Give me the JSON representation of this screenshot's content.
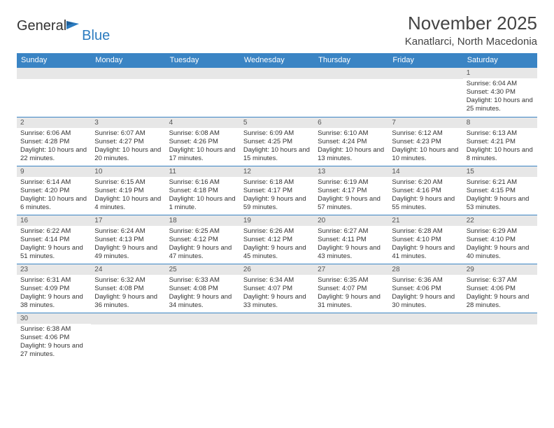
{
  "logo": {
    "word1": "General",
    "word2": "Blue",
    "flag_color": "#2b7bbf"
  },
  "title": "November 2025",
  "location": "Kanatlarci, North Macedonia",
  "header_bg": "#3a84c4",
  "daynum_bg": "#e7e7e7",
  "row_border": "#3a84c4",
  "weekdays": [
    "Sunday",
    "Monday",
    "Tuesday",
    "Wednesday",
    "Thursday",
    "Friday",
    "Saturday"
  ],
  "weeks": [
    [
      null,
      null,
      null,
      null,
      null,
      null,
      {
        "n": "1",
        "sr": "6:04 AM",
        "ss": "4:30 PM",
        "dl": "10 hours and 25 minutes."
      }
    ],
    [
      {
        "n": "2",
        "sr": "6:06 AM",
        "ss": "4:28 PM",
        "dl": "10 hours and 22 minutes."
      },
      {
        "n": "3",
        "sr": "6:07 AM",
        "ss": "4:27 PM",
        "dl": "10 hours and 20 minutes."
      },
      {
        "n": "4",
        "sr": "6:08 AM",
        "ss": "4:26 PM",
        "dl": "10 hours and 17 minutes."
      },
      {
        "n": "5",
        "sr": "6:09 AM",
        "ss": "4:25 PM",
        "dl": "10 hours and 15 minutes."
      },
      {
        "n": "6",
        "sr": "6:10 AM",
        "ss": "4:24 PM",
        "dl": "10 hours and 13 minutes."
      },
      {
        "n": "7",
        "sr": "6:12 AM",
        "ss": "4:23 PM",
        "dl": "10 hours and 10 minutes."
      },
      {
        "n": "8",
        "sr": "6:13 AM",
        "ss": "4:21 PM",
        "dl": "10 hours and 8 minutes."
      }
    ],
    [
      {
        "n": "9",
        "sr": "6:14 AM",
        "ss": "4:20 PM",
        "dl": "10 hours and 6 minutes."
      },
      {
        "n": "10",
        "sr": "6:15 AM",
        "ss": "4:19 PM",
        "dl": "10 hours and 4 minutes."
      },
      {
        "n": "11",
        "sr": "6:16 AM",
        "ss": "4:18 PM",
        "dl": "10 hours and 1 minute."
      },
      {
        "n": "12",
        "sr": "6:18 AM",
        "ss": "4:17 PM",
        "dl": "9 hours and 59 minutes."
      },
      {
        "n": "13",
        "sr": "6:19 AM",
        "ss": "4:17 PM",
        "dl": "9 hours and 57 minutes."
      },
      {
        "n": "14",
        "sr": "6:20 AM",
        "ss": "4:16 PM",
        "dl": "9 hours and 55 minutes."
      },
      {
        "n": "15",
        "sr": "6:21 AM",
        "ss": "4:15 PM",
        "dl": "9 hours and 53 minutes."
      }
    ],
    [
      {
        "n": "16",
        "sr": "6:22 AM",
        "ss": "4:14 PM",
        "dl": "9 hours and 51 minutes."
      },
      {
        "n": "17",
        "sr": "6:24 AM",
        "ss": "4:13 PM",
        "dl": "9 hours and 49 minutes."
      },
      {
        "n": "18",
        "sr": "6:25 AM",
        "ss": "4:12 PM",
        "dl": "9 hours and 47 minutes."
      },
      {
        "n": "19",
        "sr": "6:26 AM",
        "ss": "4:12 PM",
        "dl": "9 hours and 45 minutes."
      },
      {
        "n": "20",
        "sr": "6:27 AM",
        "ss": "4:11 PM",
        "dl": "9 hours and 43 minutes."
      },
      {
        "n": "21",
        "sr": "6:28 AM",
        "ss": "4:10 PM",
        "dl": "9 hours and 41 minutes."
      },
      {
        "n": "22",
        "sr": "6:29 AM",
        "ss": "4:10 PM",
        "dl": "9 hours and 40 minutes."
      }
    ],
    [
      {
        "n": "23",
        "sr": "6:31 AM",
        "ss": "4:09 PM",
        "dl": "9 hours and 38 minutes."
      },
      {
        "n": "24",
        "sr": "6:32 AM",
        "ss": "4:08 PM",
        "dl": "9 hours and 36 minutes."
      },
      {
        "n": "25",
        "sr": "6:33 AM",
        "ss": "4:08 PM",
        "dl": "9 hours and 34 minutes."
      },
      {
        "n": "26",
        "sr": "6:34 AM",
        "ss": "4:07 PM",
        "dl": "9 hours and 33 minutes."
      },
      {
        "n": "27",
        "sr": "6:35 AM",
        "ss": "4:07 PM",
        "dl": "9 hours and 31 minutes."
      },
      {
        "n": "28",
        "sr": "6:36 AM",
        "ss": "4:06 PM",
        "dl": "9 hours and 30 minutes."
      },
      {
        "n": "29",
        "sr": "6:37 AM",
        "ss": "4:06 PM",
        "dl": "9 hours and 28 minutes."
      }
    ],
    [
      {
        "n": "30",
        "sr": "6:38 AM",
        "ss": "4:06 PM",
        "dl": "9 hours and 27 minutes."
      },
      null,
      null,
      null,
      null,
      null,
      null
    ]
  ],
  "labels": {
    "sunrise": "Sunrise:",
    "sunset": "Sunset:",
    "daylight": "Daylight:"
  }
}
